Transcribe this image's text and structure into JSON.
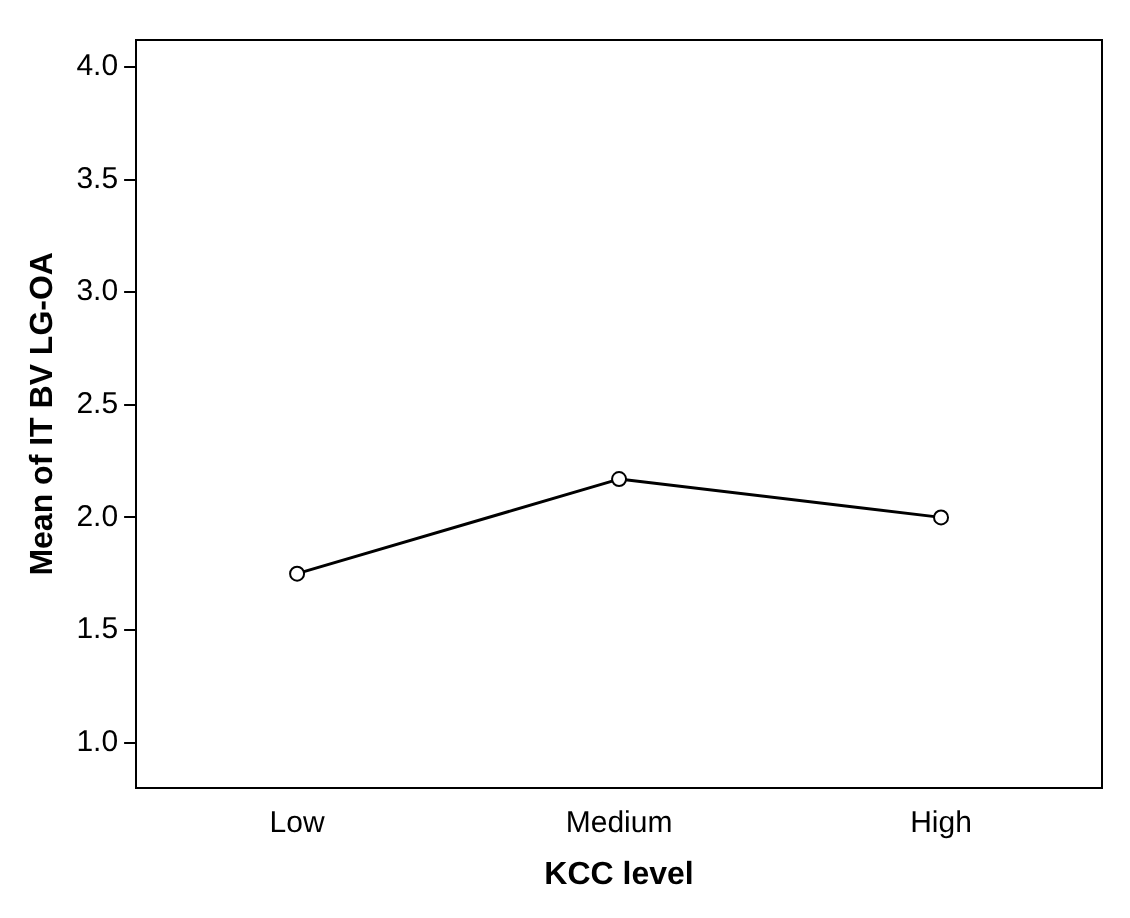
{
  "chart_data": {
    "type": "line",
    "xlabel": "KCC level",
    "ylabel": "Mean of IT BV LG-OA",
    "categories": [
      "Low",
      "Medium",
      "High"
    ],
    "series": [
      {
        "color": "#000000",
        "values": [
          1.75,
          2.17,
          2.0
        ]
      }
    ],
    "ylim": [
      0.8,
      4.12
    ],
    "yticks": [
      {
        "value": 1,
        "label": "1.0"
      },
      {
        "value": 1.5,
        "label": "1.5"
      },
      {
        "value": 2,
        "label": "2.0"
      },
      {
        "value": 2.5,
        "label": "2.5"
      },
      {
        "value": 3,
        "label": "3.0"
      },
      {
        "value": 3.5,
        "label": "3.5"
      },
      {
        "value": 4,
        "label": "4.0"
      }
    ],
    "grid": false,
    "legend": false,
    "marker": "circle",
    "line_style": "solid"
  }
}
